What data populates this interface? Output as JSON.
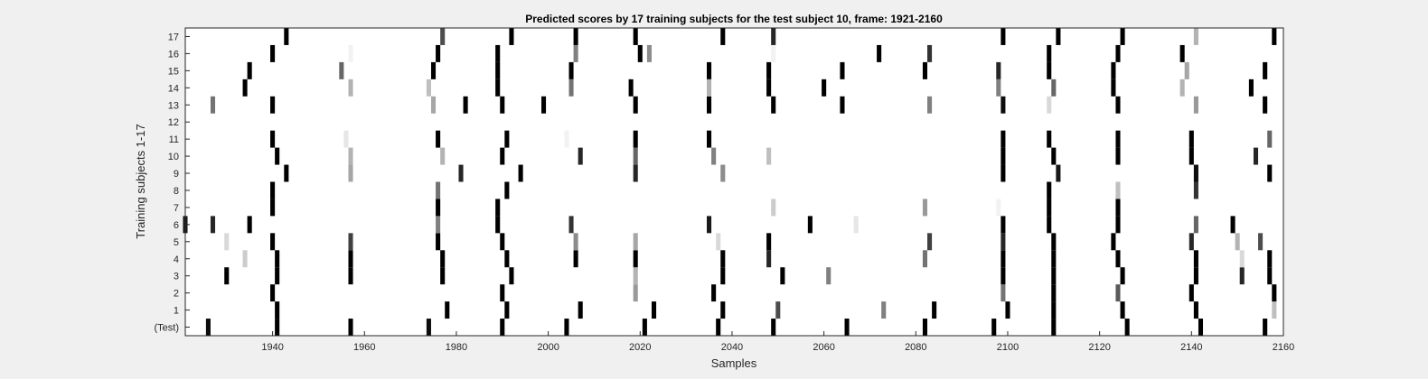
{
  "chart_data": {
    "type": "heatmap",
    "title": "Predicted scores by 17 training subjects for the test subject 10, frame: 1921-2160",
    "xlabel": "Samples",
    "ylabel": "Training subjects 1-17",
    "xlim": [
      1921,
      2160
    ],
    "x_ticks": [
      1940,
      1960,
      1980,
      2000,
      2020,
      2040,
      2060,
      2080,
      2100,
      2120,
      2140,
      2160
    ],
    "y_tick_labels": [
      "(Test)",
      "1",
      "2",
      "3",
      "4",
      "5",
      "6",
      "7",
      "8",
      "9",
      "10",
      "11",
      "12",
      "13",
      "14",
      "15",
      "16",
      "17"
    ],
    "colormap": "gray-reversed",
    "value_range": [
      0,
      1
    ],
    "background_color": "#ffffff",
    "figure_color": "#f0f0f0",
    "rows": [
      {
        "label": "(Test)",
        "cells": [
          [
            1926,
            0.95
          ],
          [
            1941,
            1
          ],
          [
            1957,
            1
          ],
          [
            1974,
            0.95
          ],
          [
            1990,
            1
          ],
          [
            2004,
            1
          ],
          [
            2021,
            1
          ],
          [
            2037,
            1
          ],
          [
            2049,
            1
          ],
          [
            2065,
            1
          ],
          [
            2082,
            1
          ],
          [
            2097,
            1
          ],
          [
            2110,
            1
          ],
          [
            2126,
            1
          ],
          [
            2142,
            1
          ],
          [
            2156,
            1
          ]
        ]
      },
      {
        "label": "1",
        "cells": [
          [
            1941,
            1
          ],
          [
            1978,
            1
          ],
          [
            1991,
            1
          ],
          [
            2007,
            1
          ],
          [
            2023,
            1
          ],
          [
            2038,
            1
          ],
          [
            2050,
            0.7
          ],
          [
            2073,
            0.5
          ],
          [
            2084,
            1
          ],
          [
            2100,
            1
          ],
          [
            2110,
            1
          ],
          [
            2125,
            1
          ],
          [
            2141,
            1
          ],
          [
            2158,
            0.25
          ]
        ]
      },
      {
        "label": "2",
        "cells": [
          [
            1940,
            1
          ],
          [
            1990,
            1
          ],
          [
            2019,
            0.4
          ],
          [
            2036,
            1
          ],
          [
            2099,
            0.55
          ],
          [
            2110,
            1
          ],
          [
            2124,
            0.65
          ],
          [
            2140,
            1
          ],
          [
            2158,
            1
          ]
        ]
      },
      {
        "label": "3",
        "cells": [
          [
            1930,
            1
          ],
          [
            1941,
            1
          ],
          [
            1957,
            1
          ],
          [
            1977,
            1
          ],
          [
            1992,
            1
          ],
          [
            2019,
            0.3
          ],
          [
            2038,
            1
          ],
          [
            2051,
            1
          ],
          [
            2061,
            0.5
          ],
          [
            2099,
            1
          ],
          [
            2110,
            1
          ],
          [
            2125,
            1
          ],
          [
            2141,
            1
          ],
          [
            2151,
            0.85
          ],
          [
            2157,
            1
          ]
        ]
      },
      {
        "label": "4",
        "cells": [
          [
            1934,
            0.2
          ],
          [
            1941,
            1
          ],
          [
            1957,
            1
          ],
          [
            1977,
            1
          ],
          [
            1991,
            1
          ],
          [
            2006,
            1
          ],
          [
            2019,
            1
          ],
          [
            2038,
            1
          ],
          [
            2048,
            0.85
          ],
          [
            2082,
            0.55
          ],
          [
            2099,
            1
          ],
          [
            2110,
            1
          ],
          [
            2124,
            1
          ],
          [
            2141,
            1
          ],
          [
            2151,
            0.15
          ],
          [
            2157,
            1
          ]
        ]
      },
      {
        "label": "5",
        "cells": [
          [
            1930,
            0.15
          ],
          [
            1940,
            1
          ],
          [
            1957,
            0.75
          ],
          [
            1976,
            1
          ],
          [
            1990,
            1
          ],
          [
            2006,
            0.45
          ],
          [
            2019,
            0.35
          ],
          [
            2037,
            0.15
          ],
          [
            2048,
            1
          ],
          [
            2083,
            0.75
          ],
          [
            2099,
            0.85
          ],
          [
            2110,
            1
          ],
          [
            2123,
            1
          ],
          [
            2140,
            0.85
          ],
          [
            2150,
            0.3
          ],
          [
            2155,
            0.7
          ]
        ]
      },
      {
        "label": "6",
        "cells": [
          [
            1921,
            0.9
          ],
          [
            1927,
            0.85
          ],
          [
            1935,
            1
          ],
          [
            1976,
            0.5
          ],
          [
            1989,
            1
          ],
          [
            2005,
            0.8
          ],
          [
            2035,
            0.9
          ],
          [
            2057,
            1
          ],
          [
            2067,
            0.1
          ],
          [
            2099,
            1
          ],
          [
            2109,
            1
          ],
          [
            2124,
            1
          ],
          [
            2141,
            0.6
          ],
          [
            2149,
            1
          ]
        ]
      },
      {
        "label": "7",
        "cells": [
          [
            1940,
            1
          ],
          [
            1976,
            1
          ],
          [
            1989,
            1
          ],
          [
            2049,
            0.2
          ],
          [
            2082,
            0.4
          ],
          [
            2098,
            0.05
          ],
          [
            2109,
            1
          ],
          [
            2124,
            1
          ]
        ]
      },
      {
        "label": "8",
        "cells": [
          [
            1940,
            1
          ],
          [
            1976,
            0.55
          ],
          [
            1991,
            1
          ],
          [
            2109,
            1
          ],
          [
            2124,
            0.25
          ],
          [
            2141,
            0.8
          ]
        ]
      },
      {
        "label": "9",
        "cells": [
          [
            1943,
            1
          ],
          [
            1957,
            0.35
          ],
          [
            1981,
            0.85
          ],
          [
            1994,
            1
          ],
          [
            2019,
            0.85
          ],
          [
            2038,
            0.45
          ],
          [
            2099,
            1
          ],
          [
            2111,
            0.9
          ],
          [
            2141,
            0.95
          ],
          [
            2157,
            1
          ]
        ]
      },
      {
        "label": "10",
        "cells": [
          [
            1941,
            1
          ],
          [
            1957,
            0.3
          ],
          [
            1977,
            0.3
          ],
          [
            1990,
            1
          ],
          [
            2007,
            0.85
          ],
          [
            2019,
            0.6
          ],
          [
            2036,
            0.5
          ],
          [
            2048,
            0.25
          ],
          [
            2099,
            1
          ],
          [
            2110,
            1
          ],
          [
            2124,
            1
          ],
          [
            2140,
            1
          ],
          [
            2154,
            0.85
          ]
        ]
      },
      {
        "label": "11",
        "cells": [
          [
            1940,
            1
          ],
          [
            1956,
            0.1
          ],
          [
            1976,
            1
          ],
          [
            1991,
            1
          ],
          [
            2004,
            0.05
          ],
          [
            2019,
            1
          ],
          [
            2035,
            1
          ],
          [
            2099,
            1
          ],
          [
            2109,
            1
          ],
          [
            2124,
            1
          ],
          [
            2140,
            1
          ],
          [
            2157,
            0.6
          ]
        ]
      },
      {
        "label": "12",
        "cells": []
      },
      {
        "label": "13",
        "cells": [
          [
            1927,
            0.55
          ],
          [
            1940,
            1
          ],
          [
            1975,
            0.35
          ],
          [
            1982,
            1
          ],
          [
            1990,
            1
          ],
          [
            1999,
            1
          ],
          [
            2019,
            1
          ],
          [
            2035,
            1
          ],
          [
            2049,
            1
          ],
          [
            2064,
            1
          ],
          [
            2083,
            0.5
          ],
          [
            2099,
            0.95
          ],
          [
            2109,
            0.15
          ],
          [
            2124,
            1
          ],
          [
            2141,
            0.4
          ],
          [
            2156,
            1
          ]
        ]
      },
      {
        "label": "14",
        "cells": [
          [
            1934,
            1
          ],
          [
            1957,
            0.3
          ],
          [
            1974,
            0.25
          ],
          [
            1989,
            1
          ],
          [
            2005,
            0.55
          ],
          [
            2018,
            1
          ],
          [
            2035,
            0.3
          ],
          [
            2048,
            1
          ],
          [
            2060,
            1
          ],
          [
            2098,
            0.5
          ],
          [
            2110,
            0.6
          ],
          [
            2123,
            1
          ],
          [
            2138,
            0.3
          ],
          [
            2153,
            1
          ]
        ]
      },
      {
        "label": "15",
        "cells": [
          [
            1935,
            1
          ],
          [
            1955,
            0.6
          ],
          [
            1975,
            1
          ],
          [
            1989,
            1
          ],
          [
            2005,
            1
          ],
          [
            2035,
            1
          ],
          [
            2048,
            1
          ],
          [
            2064,
            1
          ],
          [
            2082,
            1
          ],
          [
            2098,
            0.85
          ],
          [
            2109,
            1
          ],
          [
            2123,
            1
          ],
          [
            2139,
            0.35
          ],
          [
            2156,
            1
          ]
        ]
      },
      {
        "label": "16",
        "cells": [
          [
            1940,
            1
          ],
          [
            1957,
            0.05
          ],
          [
            1976,
            1
          ],
          [
            1989,
            1
          ],
          [
            2006,
            0.5
          ],
          [
            2020,
            1
          ],
          [
            2022,
            0.45
          ],
          [
            2049,
            0.05
          ],
          [
            2072,
            1
          ],
          [
            2083,
            0.8
          ],
          [
            2109,
            1
          ],
          [
            2124,
            1
          ],
          [
            2138,
            1
          ]
        ]
      },
      {
        "label": "17",
        "cells": [
          [
            1943,
            1
          ],
          [
            1977,
            0.7
          ],
          [
            1992,
            1
          ],
          [
            2006,
            1
          ],
          [
            2019,
            1
          ],
          [
            2038,
            1
          ],
          [
            2049,
            0.85
          ],
          [
            2099,
            1
          ],
          [
            2111,
            1
          ],
          [
            2125,
            1
          ],
          [
            2141,
            0.3
          ],
          [
            2158,
            1
          ]
        ]
      }
    ]
  }
}
